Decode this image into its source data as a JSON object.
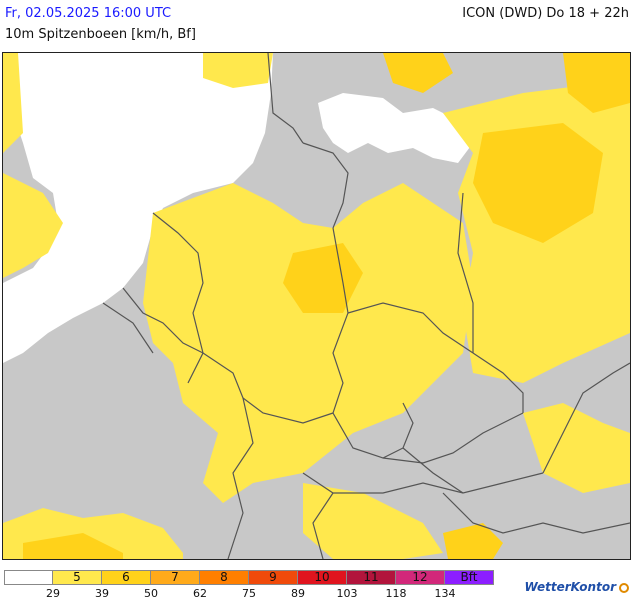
{
  "header": {
    "datetime": "Fr, 02.05.2025 16:00 UTC",
    "model": "ICON (DWD) Do 18 + 22h",
    "parameter": "10m Spitzenboeen [km/h, Bf]"
  },
  "legend": {
    "bins": [
      {
        "label": "",
        "color": "#ffffff",
        "text_color": "#111111"
      },
      {
        "label": "5",
        "color": "#ffe84d",
        "text_color": "#111111"
      },
      {
        "label": "6",
        "color": "#ffd21a",
        "text_color": "#111111"
      },
      {
        "label": "7",
        "color": "#ffaa1a",
        "text_color": "#111111"
      },
      {
        "label": "8",
        "color": "#ff7f00",
        "text_color": "#111111"
      },
      {
        "label": "9",
        "color": "#f04a0a",
        "text_color": "#111111"
      },
      {
        "label": "10",
        "color": "#e0141e",
        "text_color": "#111111"
      },
      {
        "label": "11",
        "color": "#b2143c",
        "text_color": "#111111"
      },
      {
        "label": "12",
        "color": "#d2287a",
        "text_color": "#111111"
      },
      {
        "label": "Bft",
        "color": "#8c1eff",
        "text_color": "#111111"
      }
    ],
    "thresholds": [
      "29",
      "39",
      "50",
      "62",
      "75",
      "89",
      "103",
      "118",
      "134"
    ]
  },
  "brand": "WetterKontor",
  "colors": {
    "land_low": "#c8c8c8",
    "sea": "#ffffff",
    "gust_5": "#ffe84d",
    "gust_6": "#ffd21a",
    "border": "#555555"
  }
}
